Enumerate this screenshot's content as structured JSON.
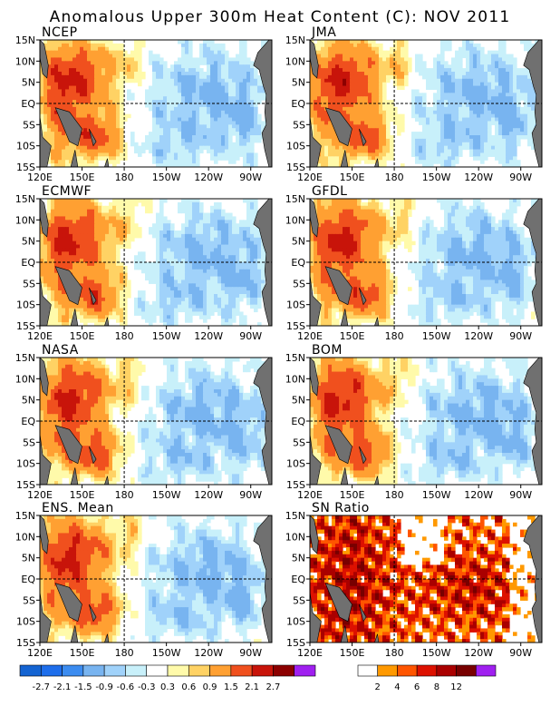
{
  "title": "Anomalous Upper 300m Heat Content (C): NOV 2011",
  "colors": {
    "anomaly_scale": [
      "#1464d2",
      "#1e6eeb",
      "#3c8cf0",
      "#78b4f0",
      "#a0d2fa",
      "#c8f0fa",
      "#ffffff",
      "#fffaaa",
      "#ffd264",
      "#ffa032",
      "#f0501e",
      "#c8140a",
      "#8c0000",
      "#a020f0"
    ],
    "sn_scale": [
      "#ffffff",
      "#ff9900",
      "#ff5500",
      "#dd1100",
      "#aa0000",
      "#780000",
      "#a020f0"
    ],
    "land": "#707070",
    "guide_line": "#000000"
  },
  "axes": {
    "x_ticks": [
      "120E",
      "150E",
      "180",
      "150W",
      "120W",
      "90W"
    ],
    "y_ticks": [
      "15N",
      "10N",
      "5N",
      "EQ",
      "5S",
      "10S",
      "15S"
    ]
  },
  "panels": [
    {
      "name": "NCEP"
    },
    {
      "name": "JMA"
    },
    {
      "name": "ECMWF"
    },
    {
      "name": "GFDL"
    },
    {
      "name": "NASA"
    },
    {
      "name": "BOM"
    },
    {
      "name": "ENS. Mean"
    },
    {
      "name": "SN Ratio"
    }
  ],
  "colorbars": {
    "anomaly_labels": [
      "-2.7",
      "-2.1",
      "-1.5",
      "-0.9",
      "-0.6",
      "-0.3",
      "0.3",
      "0.6",
      "0.9",
      "1.5",
      "2.1",
      "2.7"
    ],
    "sn_labels": [
      "2",
      "4",
      "6",
      "8",
      "12"
    ]
  },
  "chart_data": {
    "type": "heatmap",
    "title": "Anomalous Upper 300m Heat Content (C): NOV 2011",
    "x": [
      "120E",
      "150E",
      "180",
      "150W",
      "120W",
      "90W"
    ],
    "y": [
      "15N",
      "10N",
      "5N",
      "EQ",
      "5S",
      "10S",
      "15S"
    ],
    "xlim": [
      "120E",
      "75W"
    ],
    "ylim": [
      "15S",
      "15N"
    ],
    "guide_lines": {
      "x": "180",
      "y": "EQ"
    },
    "series": [
      {
        "name": "NCEP"
      },
      {
        "name": "JMA"
      },
      {
        "name": "ECMWF"
      },
      {
        "name": "GFDL"
      },
      {
        "name": "NASA"
      },
      {
        "name": "BOM"
      },
      {
        "name": "ENS. Mean"
      },
      {
        "name": "SN Ratio"
      }
    ],
    "anomaly_levels": [
      -2.7,
      -2.1,
      -1.5,
      -0.9,
      -0.6,
      -0.3,
      0.3,
      0.6,
      0.9,
      1.5,
      2.1,
      2.7
    ],
    "sn_levels": [
      2,
      4,
      6,
      8,
      12
    ],
    "approximate_field": {
      "note_hidden": null,
      "west_pacific_max": 2.1,
      "central_east_pacific_min": -0.9
    }
  }
}
